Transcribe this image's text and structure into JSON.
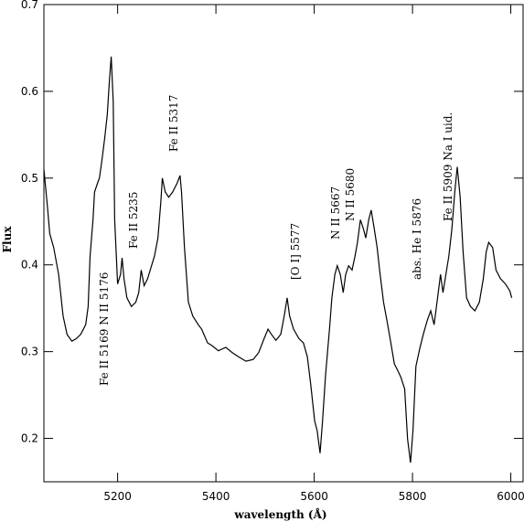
{
  "chart_data": {
    "type": "line",
    "xlabel": "wavelength (Å)",
    "ylabel": "Flux",
    "xlim": [
      5050,
      6025
    ],
    "ylim": [
      0.15,
      0.7
    ],
    "xticks": [
      5200,
      5400,
      5600,
      5800,
      6000
    ],
    "yticks": [
      0.2,
      0.3,
      0.4,
      0.5,
      0.6,
      0.7
    ],
    "color": "#000000",
    "x": [
      5050,
      5057,
      5062,
      5070,
      5080,
      5089,
      5097,
      5107,
      5116,
      5125,
      5135,
      5140,
      5144,
      5150,
      5153,
      5159,
      5163,
      5168,
      5174,
      5179,
      5183,
      5187,
      5191,
      5194,
      5200,
      5206,
      5209,
      5213,
      5219,
      5228,
      5237,
      5243,
      5248,
      5254,
      5261,
      5269,
      5275,
      5282,
      5288,
      5291,
      5297,
      5304,
      5312,
      5321,
      5327,
      5330,
      5336,
      5344,
      5353,
      5364,
      5371,
      5383,
      5392,
      5405,
      5420,
      5433,
      5446,
      5461,
      5476,
      5487,
      5498,
      5506,
      5513,
      5522,
      5532,
      5539,
      5545,
      5550,
      5558,
      5569,
      5578,
      5586,
      5593,
      5601,
      5606,
      5612,
      5617,
      5623,
      5631,
      5636,
      5642,
      5647,
      5653,
      5659,
      5664,
      5670,
      5677,
      5683,
      5688,
      5694,
      5700,
      5705,
      5711,
      5716,
      5722,
      5728,
      5733,
      5741,
      5748,
      5756,
      5763,
      5770,
      5776,
      5784,
      5790,
      5796,
      5801,
      5807,
      5815,
      5822,
      5830,
      5837,
      5844,
      5851,
      5857,
      5862,
      5868,
      5874,
      5880,
      5886,
      5891,
      5897,
      5903,
      5910,
      5918,
      5927,
      5936,
      5944,
      5950,
      5955,
      5963,
      5970,
      5979,
      5989,
      5998,
      6002
    ],
    "y": [
      0.51,
      0.468,
      0.436,
      0.42,
      0.389,
      0.341,
      0.32,
      0.312,
      0.315,
      0.32,
      0.331,
      0.352,
      0.41,
      0.452,
      0.484,
      0.494,
      0.5,
      0.52,
      0.547,
      0.573,
      0.61,
      0.64,
      0.589,
      0.452,
      0.378,
      0.389,
      0.408,
      0.384,
      0.362,
      0.352,
      0.357,
      0.368,
      0.394,
      0.376,
      0.384,
      0.399,
      0.41,
      0.431,
      0.473,
      0.5,
      0.484,
      0.478,
      0.484,
      0.494,
      0.503,
      0.484,
      0.42,
      0.357,
      0.341,
      0.331,
      0.326,
      0.31,
      0.307,
      0.301,
      0.305,
      0.299,
      0.294,
      0.289,
      0.291,
      0.299,
      0.315,
      0.326,
      0.32,
      0.313,
      0.32,
      0.341,
      0.362,
      0.341,
      0.326,
      0.315,
      0.31,
      0.294,
      0.262,
      0.22,
      0.209,
      0.183,
      0.22,
      0.273,
      0.326,
      0.362,
      0.389,
      0.399,
      0.389,
      0.368,
      0.389,
      0.399,
      0.394,
      0.41,
      0.426,
      0.452,
      0.442,
      0.431,
      0.452,
      0.463,
      0.442,
      0.42,
      0.394,
      0.357,
      0.336,
      0.31,
      0.286,
      0.278,
      0.271,
      0.257,
      0.199,
      0.172,
      0.209,
      0.283,
      0.304,
      0.32,
      0.336,
      0.347,
      0.331,
      0.362,
      0.389,
      0.368,
      0.389,
      0.41,
      0.441,
      0.484,
      0.513,
      0.478,
      0.415,
      0.362,
      0.352,
      0.347,
      0.357,
      0.384,
      0.415,
      0.426,
      0.42,
      0.394,
      0.384,
      0.378,
      0.37,
      0.362
    ],
    "annotations": [
      "Fe II 5169  N II 5176",
      "Fe II 5235",
      "Fe II 5317",
      "[O I] 5577",
      "N II 5667",
      "N II 5680",
      "abs. He I 5876",
      "Fe II 5909  Na I uid."
    ]
  }
}
